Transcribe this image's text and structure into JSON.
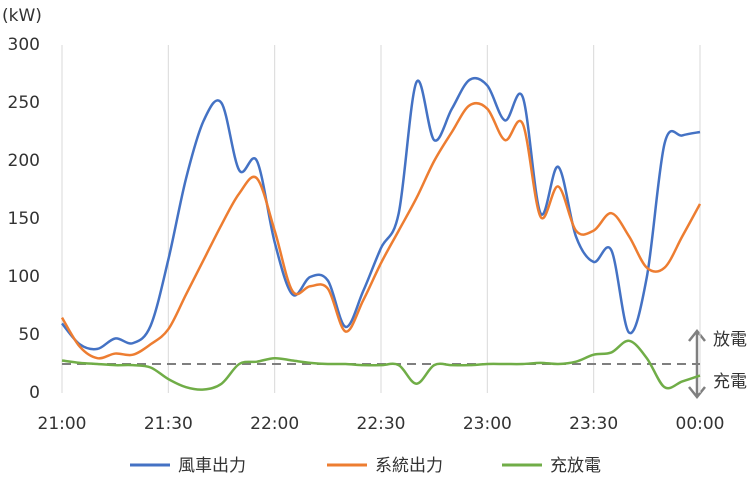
{
  "chart_data": {
    "type": "line",
    "y_label": "(kW)",
    "categories": [
      "21:00",
      null,
      null,
      null,
      null,
      null,
      "21:30",
      null,
      null,
      null,
      null,
      null,
      "22:00",
      null,
      null,
      null,
      null,
      null,
      "22:30",
      null,
      null,
      null,
      null,
      null,
      "23:00",
      null,
      null,
      null,
      null,
      null,
      "23:30",
      null,
      null,
      null,
      null,
      null,
      "00:00"
    ],
    "series": [
      {
        "name": "風車出力",
        "color": "#4472c4",
        "values": [
          60,
          42,
          38,
          47,
          43,
          58,
          115,
          185,
          235,
          250,
          192,
          200,
          130,
          85,
          100,
          97,
          57,
          88,
          125,
          155,
          268,
          218,
          245,
          270,
          265,
          235,
          255,
          155,
          195,
          135,
          113,
          123,
          52,
          100,
          215,
          222,
          225
        ]
      },
      {
        "name": "系統出力",
        "color": "#ed7d31",
        "values": [
          65,
          40,
          30,
          34,
          33,
          42,
          55,
          85,
          115,
          145,
          172,
          185,
          140,
          88,
          92,
          90,
          53,
          80,
          112,
          140,
          168,
          200,
          225,
          248,
          245,
          218,
          232,
          152,
          178,
          140,
          140,
          155,
          135,
          108,
          108,
          135,
          163
        ]
      },
      {
        "name": "充放電",
        "color": "#70ad47",
        "values": [
          28,
          26,
          25,
          24,
          24,
          22,
          12,
          5,
          3,
          8,
          25,
          27,
          30,
          28,
          26,
          25,
          25,
          24,
          24,
          24,
          8,
          24,
          24,
          24,
          25,
          25,
          25,
          26,
          25,
          27,
          33,
          35,
          45,
          30,
          5,
          10,
          15
        ]
      }
    ],
    "reference_line": 25,
    "annotations": [
      "放電",
      "充電"
    ],
    "ylim": [
      0,
      300
    ],
    "yticks": [
      0,
      50,
      100,
      150,
      200,
      250,
      300
    ],
    "grid": "vertical"
  }
}
